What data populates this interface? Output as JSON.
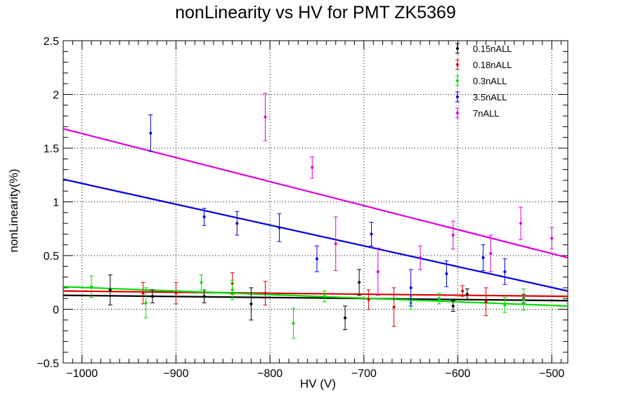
{
  "chart_data": {
    "type": "scatter",
    "title": "nonLinearity vs HV for PMT ZK5369",
    "xlabel": "HV (V)",
    "ylabel": "nonLinearity(%)",
    "xlim": [
      -1020,
      -483
    ],
    "ylim": [
      -0.5,
      2.5
    ],
    "xticks": [
      -1000,
      -900,
      -800,
      -700,
      -600,
      -500
    ],
    "xtick_labels": [
      "−1000",
      "−900",
      "−800",
      "−700",
      "−600",
      "−500"
    ],
    "yticks": [
      -0.5,
      0,
      0.5,
      1,
      1.5,
      2,
      2.5
    ],
    "ytick_labels": [
      "−0.5",
      "0",
      "0.5",
      "1",
      "1.5",
      "2",
      "2.5"
    ],
    "grid": true,
    "legend_position": "top-right",
    "series": [
      {
        "name": "0.15nALL",
        "color": "#000000",
        "points": [
          [
            -970,
            0.18,
            0.14
          ],
          [
            -925,
            0.12,
            0.06
          ],
          [
            -870,
            0.12,
            0.06
          ],
          [
            -820,
            0.05,
            0.15
          ],
          [
            -720,
            -0.08,
            0.11
          ],
          [
            -705,
            0.25,
            0.12
          ],
          [
            -605,
            0.03,
            0.05
          ],
          [
            -590,
            0.14,
            0.05
          ],
          [
            -530,
            0.1,
            0.04
          ]
        ],
        "fit": [
          [
            -1020,
            0.13
          ],
          [
            -483,
            0.08
          ]
        ]
      },
      {
        "name": "0.18nALL",
        "color": "#dd0000",
        "points": [
          [
            -935,
            0.15,
            0.1
          ],
          [
            -900,
            0.15,
            0.1
          ],
          [
            -840,
            0.24,
            0.1
          ],
          [
            -805,
            0.15,
            0.11
          ],
          [
            -695,
            0.09,
            0.09
          ],
          [
            -668,
            0.02,
            0.18
          ],
          [
            -595,
            0.17,
            0.05
          ],
          [
            -570,
            0.07,
            0.13
          ]
        ],
        "fit": [
          [
            -1020,
            0.17
          ],
          [
            -483,
            0.12
          ]
        ]
      },
      {
        "name": "0.3nALL",
        "color": "#00dd00",
        "points": [
          [
            -990,
            0.21,
            0.1
          ],
          [
            -932,
            0.06,
            0.14
          ],
          [
            -873,
            0.25,
            0.07
          ],
          [
            -840,
            0.18,
            0.09
          ],
          [
            -775,
            -0.13,
            0.14
          ],
          [
            -742,
            0.12,
            0.05
          ],
          [
            -650,
            0.06,
            0.06
          ],
          [
            -620,
            0.1,
            0.05
          ],
          [
            -550,
            0.04,
            0.07
          ],
          [
            -530,
            0.09,
            0.1
          ]
        ],
        "fit": [
          [
            -1020,
            0.21
          ],
          [
            -483,
            0.03
          ]
        ]
      },
      {
        "name": "3.5nALL",
        "color": "#0000dd",
        "points": [
          [
            -927,
            1.64,
            0.17
          ],
          [
            -870,
            0.86,
            0.08
          ],
          [
            -835,
            0.8,
            0.11
          ],
          [
            -790,
            0.76,
            0.13
          ],
          [
            -750,
            0.47,
            0.12
          ],
          [
            -692,
            0.7,
            0.11
          ],
          [
            -650,
            0.2,
            0.17
          ],
          [
            -612,
            0.33,
            0.12
          ],
          [
            -573,
            0.48,
            0.12
          ],
          [
            -550,
            0.35,
            0.12
          ]
        ],
        "fit": [
          [
            -1020,
            1.21
          ],
          [
            -483,
            0.17
          ]
        ]
      },
      {
        "name": "7nALL",
        "color": "#dd00dd",
        "points": [
          [
            -805,
            1.79,
            0.22
          ],
          [
            -755,
            1.32,
            0.1
          ],
          [
            -730,
            0.61,
            0.25
          ],
          [
            -685,
            0.35,
            0.22
          ],
          [
            -640,
            0.48,
            0.11
          ],
          [
            -605,
            0.69,
            0.13
          ],
          [
            -565,
            0.52,
            0.17
          ],
          [
            -533,
            0.8,
            0.15
          ],
          [
            -500,
            0.66,
            0.1
          ]
        ],
        "fit": [
          [
            -1020,
            1.68
          ],
          [
            -483,
            0.48
          ]
        ]
      }
    ]
  }
}
